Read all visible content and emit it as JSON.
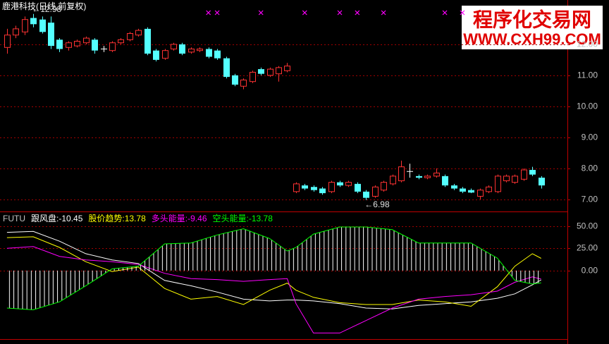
{
  "watermark": {
    "title": "程序化交易网",
    "url": "WWW.CXH99.COM"
  },
  "chart_data": [
    {
      "type": "candlestick",
      "title": "鹿港科技(日线,前复权)",
      "open": [
        11.9,
        12.3,
        12.4,
        12.85,
        12.8,
        12.7,
        12.15,
        11.9,
        11.95,
        12.05,
        12.15,
        11.85,
        11.8,
        12.05,
        12.15,
        12.3,
        12.5,
        11.8,
        11.55,
        11.85,
        12.0,
        11.75,
        11.8,
        11.85,
        11.8,
        11.55,
        11.0,
        10.65,
        10.8,
        11.2,
        11.0,
        11.05,
        11.15,
        7.25,
        7.45,
        7.4,
        7.35,
        7.25,
        7.55,
        7.45,
        7.5,
        7.25,
        7.1,
        7.3,
        7.5,
        7.6,
        7.9,
        7.75,
        7.7,
        7.75,
        7.75,
        7.45,
        7.35,
        7.3,
        7.1,
        7.25,
        7.25,
        7.6,
        7.55,
        7.65,
        7.95,
        7.7
      ],
      "high": [
        12.5,
        12.6,
        12.9,
        12.98,
        12.9,
        12.9,
        12.2,
        12.1,
        12.15,
        12.25,
        12.2,
        11.95,
        12.1,
        12.2,
        12.4,
        12.5,
        12.55,
        11.85,
        11.85,
        12.05,
        12.05,
        11.9,
        11.9,
        11.9,
        11.85,
        11.6,
        11.05,
        10.9,
        11.15,
        11.25,
        11.25,
        11.3,
        11.4,
        7.55,
        7.5,
        7.45,
        7.4,
        7.6,
        7.6,
        7.6,
        7.55,
        7.3,
        7.45,
        7.6,
        7.8,
        8.25,
        8.15,
        7.8,
        7.8,
        8.0,
        7.8,
        7.5,
        7.4,
        7.35,
        7.35,
        7.45,
        7.8,
        7.8,
        7.8,
        8.0,
        8.05,
        7.75
      ],
      "low": [
        11.7,
        12.2,
        12.3,
        12.55,
        12.35,
        11.85,
        11.75,
        11.8,
        11.9,
        12.0,
        11.7,
        11.75,
        11.75,
        12.0,
        12.1,
        12.25,
        11.65,
        11.45,
        11.5,
        11.8,
        11.65,
        11.7,
        11.75,
        11.55,
        11.5,
        10.9,
        10.65,
        10.55,
        10.75,
        11.0,
        10.95,
        10.8,
        11.1,
        7.2,
        7.3,
        7.25,
        7.15,
        7.2,
        7.4,
        7.4,
        7.2,
        6.98,
        7.05,
        7.25,
        7.45,
        7.55,
        7.7,
        7.65,
        7.65,
        7.7,
        7.4,
        7.3,
        7.2,
        7.2,
        7.0,
        7.2,
        7.2,
        7.55,
        7.5,
        7.6,
        7.75,
        7.35
      ],
      "close": [
        12.3,
        12.5,
        12.8,
        12.65,
        12.4,
        11.95,
        11.85,
        12.05,
        12.1,
        12.2,
        11.8,
        11.85,
        12.05,
        12.15,
        12.35,
        12.45,
        11.7,
        11.5,
        11.8,
        12.0,
        11.7,
        11.85,
        11.85,
        11.6,
        11.55,
        10.95,
        10.7,
        10.85,
        11.1,
        11.05,
        11.2,
        11.25,
        11.3,
        7.5,
        7.35,
        7.3,
        7.2,
        7.55,
        7.45,
        7.55,
        7.25,
        7.05,
        7.4,
        7.55,
        7.75,
        8.05,
        7.9,
        7.7,
        7.75,
        7.85,
        7.45,
        7.35,
        7.25,
        7.22,
        7.3,
        7.4,
        7.75,
        7.75,
        7.75,
        7.95,
        7.8,
        7.45
      ],
      "up_color": "#ff3232",
      "down_color": "#54ffff",
      "flat_color": "#ffffff",
      "xlim": [
        -0.8,
        64
      ],
      "ylim": [
        6.61,
        13.43
      ],
      "yticks": [
        {
          "value": 7,
          "label": "7.00"
        },
        {
          "value": 8,
          "label": "8.00"
        },
        {
          "value": 9,
          "label": "9.00"
        },
        {
          "value": 10,
          "label": "10.00"
        },
        {
          "value": 11,
          "label": "11.00"
        },
        {
          "value": 12,
          "label": "12.00"
        }
      ],
      "grid": true,
      "annotations": [
        {
          "label": "←12.98",
          "value": 12.98
        },
        {
          "label": "←6.98",
          "value": 6.98
        }
      ],
      "signals": [
        23,
        24,
        29,
        34,
        38,
        40,
        43,
        50,
        52
      ],
      "signal_color": "#ff00ff"
    },
    {
      "type": "line",
      "name": "FUTU",
      "label_separator": ":",
      "x": [
        0,
        3,
        6,
        9,
        12,
        15,
        18,
        21,
        24,
        27,
        30,
        32,
        33,
        35,
        38,
        41,
        44,
        47,
        50,
        53,
        56,
        58,
        60,
        61
      ],
      "xlim": [
        -0.8,
        64
      ],
      "ylim": [
        -76,
        64
      ],
      "yticks": [
        {
          "value": 50,
          "label": "50.00"
        },
        {
          "value": 25,
          "label": "25.00"
        },
        {
          "value": 0,
          "label": "0.00"
        }
      ],
      "grid": true,
      "series": [
        {
          "name": "跟风盘",
          "color": "#ffffff",
          "values": [
            43,
            44,
            33,
            19,
            12,
            8,
            -11,
            -17,
            -24,
            -32,
            -34,
            -33,
            -33,
            -34,
            -37,
            -42,
            -43,
            -39,
            -37,
            -35,
            -31,
            -26,
            -16,
            -10.45
          ]
        },
        {
          "name": "股价趋势",
          "color": "#ffff00",
          "values": [
            37,
            38,
            26,
            10,
            -1,
            4,
            -20,
            -32,
            -29,
            -38,
            -22,
            -14,
            -22,
            -30,
            -36,
            -38,
            -38,
            -33,
            -35,
            -40,
            -18,
            5,
            19,
            13.78
          ]
        },
        {
          "name": "多头能量",
          "color": "#ff00ff",
          "values": [
            25,
            27,
            16,
            12,
            10,
            7,
            -3,
            -9,
            -10,
            -12,
            -10,
            -9,
            -37,
            -70,
            -70,
            -56,
            -42,
            -32,
            -29,
            -27,
            -23,
            -13,
            -7,
            -9.46
          ]
        },
        {
          "name": "空头能量",
          "color": "#00ff00",
          "style": "hatched_area",
          "values": [
            -42,
            -44,
            -35,
            -17,
            2,
            5,
            30,
            31,
            40,
            47,
            36,
            22,
            26,
            41,
            49,
            49,
            46,
            31,
            31,
            31,
            14,
            -11,
            -15,
            -13.78
          ]
        }
      ]
    }
  ]
}
